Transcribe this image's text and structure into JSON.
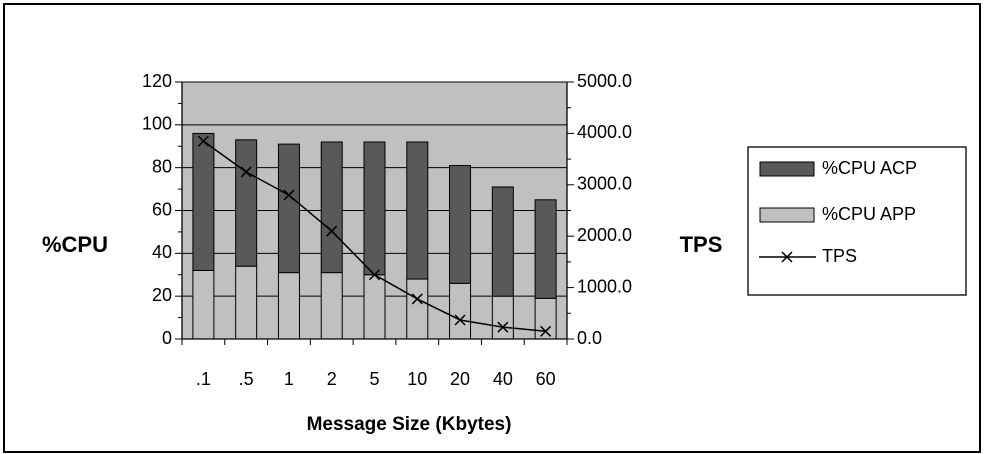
{
  "chart_data": {
    "type": "bar",
    "stacked": true,
    "categories": [
      ".1",
      ".5",
      "1",
      "2",
      "5",
      "10",
      "20",
      "40",
      "60"
    ],
    "series": [
      {
        "name": "%CPU APP",
        "type": "bar",
        "axis": "left",
        "color": "#c0c0c0",
        "values": [
          32,
          34,
          31,
          31,
          30,
          28,
          26,
          20,
          19
        ]
      },
      {
        "name": "%CPU ACP",
        "type": "bar",
        "axis": "left",
        "color": "#595959",
        "values": [
          64,
          59,
          60,
          61,
          62,
          64,
          55,
          51,
          46
        ]
      },
      {
        "name": "TPS",
        "type": "line",
        "axis": "right",
        "marker": "x",
        "color": "#000000",
        "values": [
          3850,
          3250,
          2800,
          2100,
          1250,
          780,
          370,
          230,
          150
        ]
      }
    ],
    "xlabel": "Message Size (Kbytes)",
    "ylabel": "%CPU",
    "ylabel_right": "TPS",
    "ylim": [
      0,
      120
    ],
    "ylim_right": [
      0,
      5000
    ],
    "yticks": [
      "0",
      "20",
      "40",
      "60",
      "80",
      "100",
      "120"
    ],
    "yticks_right": [
      "0.0",
      "1000.0",
      "2000.0",
      "3000.0",
      "4000.0",
      "5000.0"
    ],
    "grid": true,
    "plot_background": "#c0c0c0",
    "legend_position": "right",
    "legend": [
      {
        "label": "%CPU ACP",
        "kind": "bar",
        "color": "#595959"
      },
      {
        "label": "%CPU APP",
        "kind": "bar",
        "color": "#c0c0c0"
      },
      {
        "label": "TPS",
        "kind": "line-x",
        "color": "#000000"
      }
    ]
  }
}
